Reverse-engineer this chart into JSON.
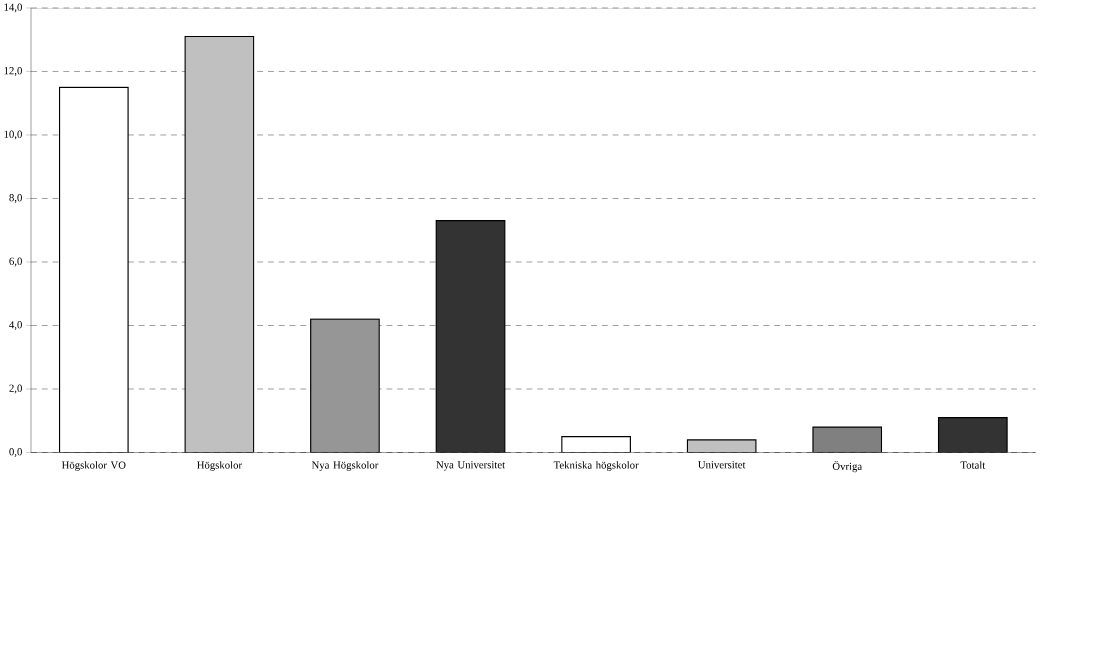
{
  "chart_data": {
    "type": "bar",
    "categories": [
      "Högskolor VO",
      "Högskolor",
      "Nya Högskolor",
      "Nya Universitet",
      "Tekniska högskolor",
      "Universitet",
      "Övriga",
      "Totalt"
    ],
    "values": [
      11.5,
      13.1,
      4.2,
      7.3,
      0.5,
      0.4,
      0.8,
      1.1
    ],
    "colors": [
      "#ffffff",
      "#c0c0c0",
      "#969696",
      "#333333",
      "#ffffff",
      "#c0c0c0",
      "#808080",
      "#333333"
    ],
    "ylim": [
      0,
      14
    ],
    "yticks": [
      {
        "value": 0,
        "label": "0,0"
      },
      {
        "value": 2,
        "label": "2,0"
      },
      {
        "value": 4,
        "label": "4,0"
      },
      {
        "value": 6,
        "label": "6,0"
      },
      {
        "value": 8,
        "label": "8,0"
      },
      {
        "value": 10,
        "label": "10,0"
      },
      {
        "value": 12,
        "label": "12,0"
      },
      {
        "value": 14,
        "label": "14,0"
      }
    ],
    "grid": "y"
  }
}
